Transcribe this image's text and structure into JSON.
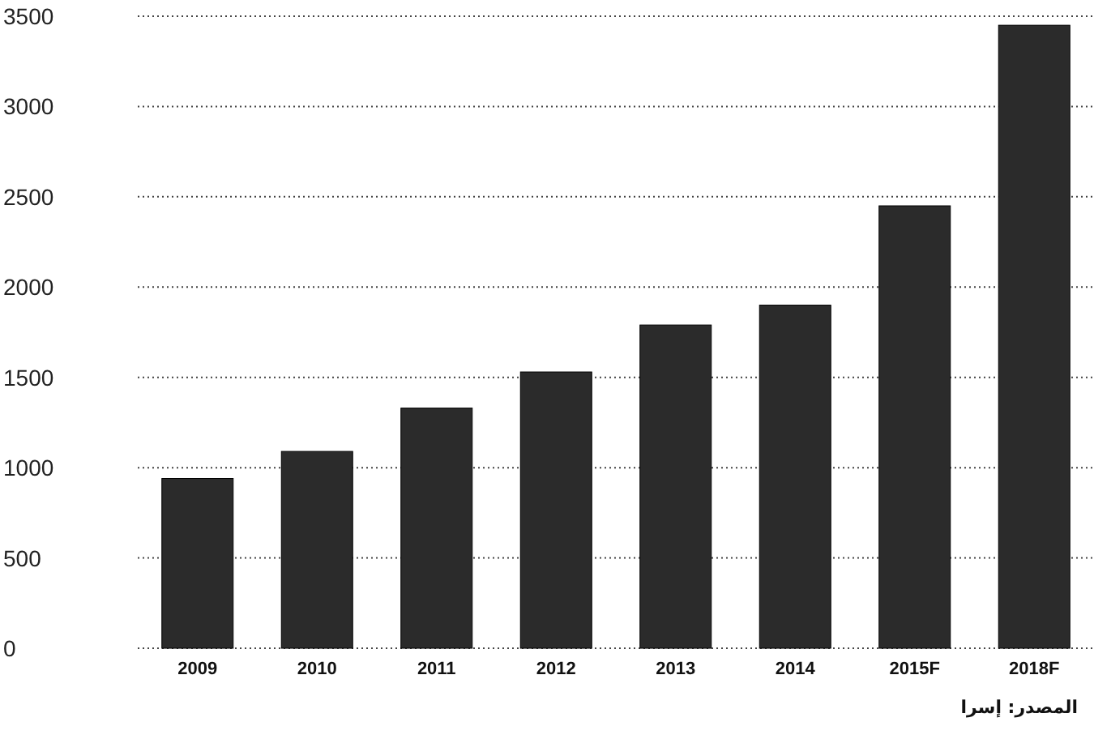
{
  "chart_data": {
    "type": "bar",
    "categories": [
      "2009",
      "2010",
      "2011",
      "2012",
      "2013",
      "2014",
      "2015F",
      "2018F"
    ],
    "values": [
      940,
      1090,
      1330,
      1530,
      1790,
      1900,
      2450,
      3450
    ],
    "color": "#2b2b2b",
    "ylim": [
      0,
      3500
    ],
    "yticks": [
      0,
      500,
      1000,
      1500,
      2000,
      2500,
      3000,
      3500
    ],
    "grid": "y",
    "annotations": [
      "المصدر: إسرا"
    ]
  }
}
